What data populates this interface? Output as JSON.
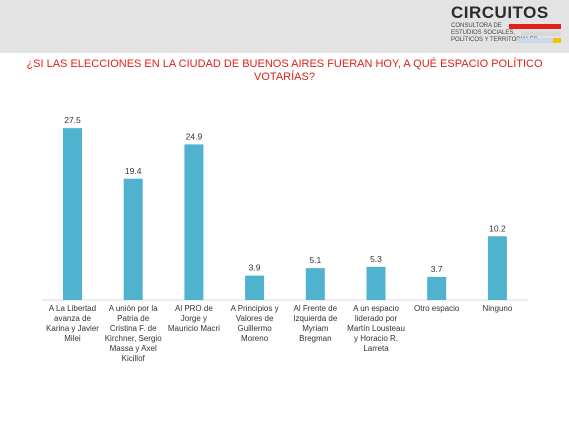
{
  "header": {
    "logo_title": "CIRCUITOS",
    "logo_lines": [
      "CONSULTORA DE",
      "ESTUDIOS SOCIALES,",
      "POLÍTICOS Y TERRITORIALES"
    ],
    "logo_colors": [
      "#e0201b",
      "#d8d8d8",
      "#c6d8ea",
      "#f2c200"
    ]
  },
  "chart_data": {
    "type": "bar",
    "title": "¿SI LAS ELECCIONES EN LA CIUDAD DE BUENOS AIRES FUERAN HOY, A QUÉ ESPACIO POLÍTICO VOTARÍAS?",
    "categories": [
      "A La Libertad avanza de Karina y Javier Milei",
      "A unión por la Patria de Cristina F. de Kirchner, Sergio Massa y Axel Kicillof",
      "Al PRO de Jorge y Mauricio Macri",
      "A Principios y Valores de Guillermo Moreno",
      "Al Frente de Izquierda de Myriam Bregman",
      "A un espacio liderado por Martín Lousteau y Horacio R. Larreta",
      "Otro espacio",
      "Ninguno"
    ],
    "values": [
      27.5,
      19.4,
      24.9,
      3.9,
      5.1,
      5.3,
      3.7,
      10.2
    ],
    "value_labels": [
      "27.5",
      "19.4",
      "24.9",
      "3.9",
      "5.1",
      "5.3",
      "3.7",
      "10.2"
    ],
    "ylim": [
      0,
      30
    ],
    "bar_color": "#4fb3cf",
    "grid": false,
    "legend": "none"
  }
}
